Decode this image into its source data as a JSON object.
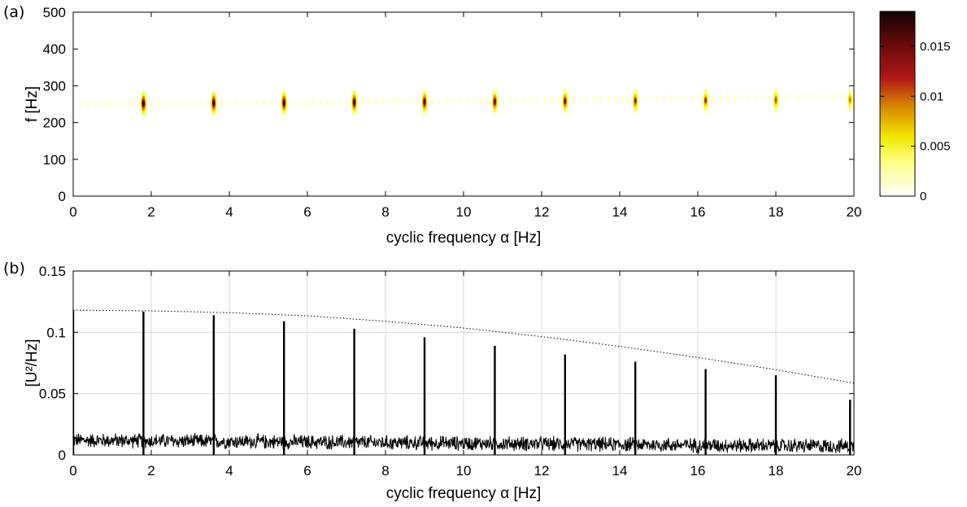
{
  "chart_data": [
    {
      "type": "heatmap",
      "panel_label": "(a)",
      "xlabel": "cyclic frequency α [Hz]",
      "ylabel": "f [Hz]",
      "xlim": [
        0,
        20
      ],
      "ylim": [
        0,
        500
      ],
      "xticks": [
        0,
        2,
        4,
        6,
        8,
        10,
        12,
        14,
        16,
        18,
        20
      ],
      "yticks": [
        0,
        100,
        200,
        300,
        400,
        500
      ],
      "colorbar": {
        "range": [
          0,
          0.0185
        ],
        "ticks": [
          0,
          0.005,
          0.01,
          0.015
        ],
        "tick_labels": [
          "0",
          "0.005",
          "0.01",
          "0.015"
        ],
        "colormap": [
          "#ffffff",
          "#ffff8a",
          "#f0e800",
          "#d88a00",
          "#b01818",
          "#6a0a0a",
          "#120404"
        ]
      },
      "band_center_f": [
        250,
        270
      ],
      "band_halfwidth_f": 10,
      "peaks": [
        {
          "alpha": 1.8,
          "f": 252,
          "value": 0.0185
        },
        {
          "alpha": 3.6,
          "f": 253,
          "value": 0.018
        },
        {
          "alpha": 5.4,
          "f": 254,
          "value": 0.0175
        },
        {
          "alpha": 7.2,
          "f": 255,
          "value": 0.0168
        },
        {
          "alpha": 9.0,
          "f": 256,
          "value": 0.016
        },
        {
          "alpha": 10.8,
          "f": 257,
          "value": 0.015
        },
        {
          "alpha": 12.6,
          "f": 258,
          "value": 0.014
        },
        {
          "alpha": 14.4,
          "f": 259,
          "value": 0.0128
        },
        {
          "alpha": 16.2,
          "f": 260,
          "value": 0.0118
        },
        {
          "alpha": 18.0,
          "f": 261,
          "value": 0.0105
        },
        {
          "alpha": 19.9,
          "f": 262,
          "value": 0.009
        }
      ],
      "background_stripe_spacing_alpha": 0.18,
      "background_level": 0.0018
    },
    {
      "type": "line",
      "panel_label": "(b)",
      "xlabel": "cyclic frequency α [Hz]",
      "ylabel": "[U²/Hz]",
      "xlim": [
        0,
        20
      ],
      "ylim": [
        0,
        0.15
      ],
      "xticks": [
        0,
        2,
        4,
        6,
        8,
        10,
        12,
        14,
        16,
        18,
        20
      ],
      "yticks": [
        0,
        0.05,
        0.1,
        0.15
      ],
      "ytick_labels": [
        "0",
        "0.05",
        "0.1",
        "0.15"
      ],
      "grid": true,
      "series": [
        {
          "style": "spikes",
          "x": [
            0.0,
            1.8,
            3.6,
            5.4,
            7.2,
            9.0,
            10.8,
            12.6,
            14.4,
            16.2,
            18.0,
            19.9
          ],
          "values": [
            0.118,
            0.117,
            0.114,
            0.109,
            0.103,
            0.096,
            0.089,
            0.082,
            0.076,
            0.07,
            0.065,
            0.045
          ]
        },
        {
          "style": "dotted",
          "x": [
            0,
            2,
            4,
            6,
            8,
            10,
            12,
            14,
            16,
            18,
            20
          ],
          "values": [
            0.118,
            0.1175,
            0.116,
            0.1135,
            0.109,
            0.1035,
            0.0965,
            0.0885,
            0.0795,
            0.0695,
            0.0585
          ]
        }
      ],
      "noise_floor": {
        "start_mean": 0.012,
        "end_mean": 0.007,
        "spread": 0.005
      }
    }
  ]
}
